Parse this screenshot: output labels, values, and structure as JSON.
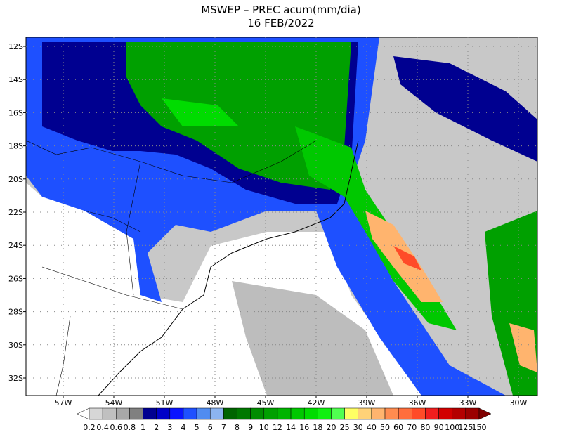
{
  "title": "MSWEP – PREC acum(mm/dia)",
  "subtitle": "16 FEB/2022",
  "map": {
    "lat_labels": [
      "12S",
      "14S",
      "16S",
      "18S",
      "20S",
      "22S",
      "24S",
      "26S",
      "28S",
      "30S",
      "32S"
    ],
    "lon_labels": [
      "57W",
      "54W",
      "51W",
      "48W",
      "45W",
      "42W",
      "39W",
      "36W",
      "33W",
      "30W"
    ],
    "grid": true
  },
  "colorbar": {
    "labels": [
      "0.2",
      "0.4",
      "0.6",
      "0.8",
      "1",
      "2",
      "3",
      "4",
      "5",
      "6",
      "7",
      "8",
      "9",
      "10",
      "12",
      "14",
      "16",
      "18",
      "20",
      "25",
      "30",
      "40",
      "50",
      "60",
      "70",
      "80",
      "90",
      "100",
      "125",
      "150"
    ],
    "colors": [
      "#d6d6d6",
      "#c0c0c0",
      "#a8a8a8",
      "#808080",
      "#000090",
      "#0000c8",
      "#0a14ff",
      "#1e50ff",
      "#508cf0",
      "#8cb4f0",
      "#006400",
      "#007800",
      "#008c00",
      "#00a000",
      "#00b400",
      "#00c800",
      "#00dc00",
      "#10f010",
      "#50ff50",
      "#ffff64",
      "#ffd278",
      "#ffb46e",
      "#ff8c50",
      "#ff6e3c",
      "#ff4b28",
      "#f01e1e",
      "#d20000",
      "#b40000",
      "#9b0000"
    ],
    "under_color": "#ffffff",
    "over_color": "#800000"
  }
}
